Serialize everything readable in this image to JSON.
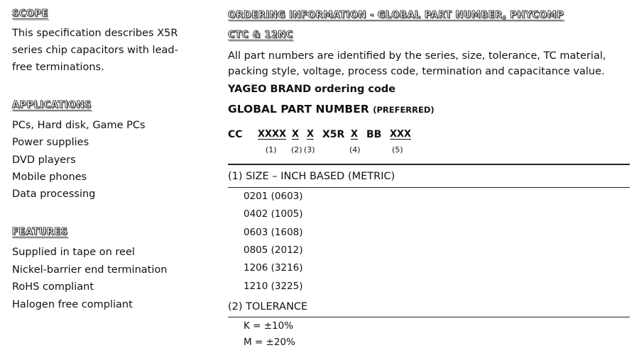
{
  "left": {
    "scope": {
      "heading": "SCOPE",
      "lines": [
        "This specification describes X5R",
        "series chip capacitors with lead-",
        "free terminations."
      ]
    },
    "applications": {
      "heading": "APPLICATIONS",
      "items": [
        "PCs, Hard disk, Game PCs",
        "Power supplies",
        "DVD players",
        "Mobile phones",
        "Data processing"
      ]
    },
    "features": {
      "heading": "FEATURES",
      "items": [
        "Supplied in tape on reel",
        "Nickel-barrier end termination",
        "RoHS compliant",
        "Halogen free compliant"
      ]
    }
  },
  "right": {
    "heading_line1": "ORDERING INFORMATION - GLOBAL PART NUMBER, PHYCOMP",
    "heading_line2": "CTC & 12NC",
    "intro_lines": [
      "All part numbers are identified by the series, size, tolerance, TC material,",
      "packing style, voltage, process code, termination and capacitance value."
    ],
    "brand_label": "YAGEO BRAND ordering code",
    "gpn_label": "GLOBAL PART NUMBER",
    "gpn_note": "(PREFERRED)",
    "code_parts": [
      "CC",
      "XXXX",
      "X",
      "X",
      "X5R",
      "X",
      "BB",
      "XXX"
    ],
    "code_indices": [
      "(1)",
      "(2)",
      "(3)",
      "(4)",
      "(5)"
    ],
    "size_section": {
      "title": "(1) SIZE – INCH BASED (METRIC)",
      "items": [
        "0201 (0603)",
        "0402 (1005)",
        "0603 (1608)",
        "0805 (2012)",
        "1206 (3216)",
        "1210 (3225)"
      ]
    },
    "tolerance_section": {
      "title": "(2) TOLERANCE",
      "items": [
        "K = ±10%",
        "M = ±20%"
      ]
    }
  }
}
